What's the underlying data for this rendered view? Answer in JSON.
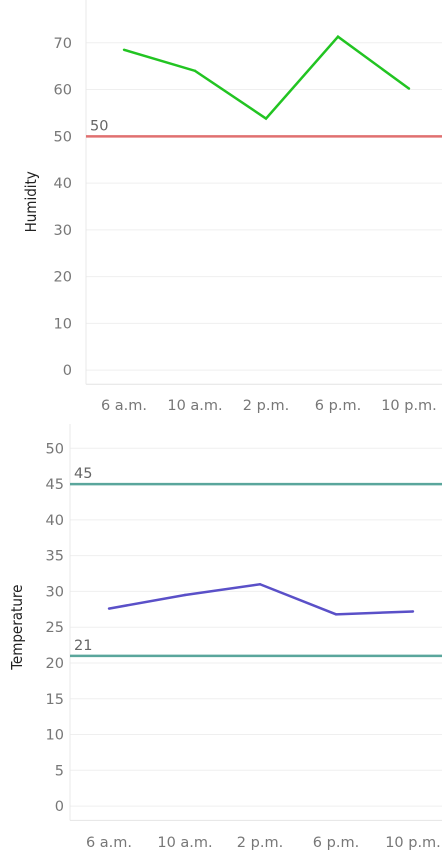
{
  "chart_data": [
    {
      "type": "line",
      "categories": [
        "6 a.m.",
        "10 a.m.",
        "2 p.m.",
        "6 p.m.",
        "10 p.m."
      ],
      "series": [
        {
          "values": [
            68.5,
            64,
            53.8,
            71.3,
            60.2
          ],
          "color": "#22c422"
        }
      ],
      "ylabel": "Humidity",
      "ylim": [
        -3,
        75
      ],
      "yticks": [
        0,
        10,
        20,
        30,
        40,
        50,
        60,
        70
      ],
      "reference_lines": [
        {
          "value": 50,
          "label": "50",
          "color": "#e07070"
        }
      ],
      "grid": true
    },
    {
      "type": "line",
      "categories": [
        "6 a.m.",
        "10 a.m.",
        "2 p.m.",
        "6 p.m.",
        "10 p.m."
      ],
      "series": [
        {
          "values": [
            27.6,
            29.5,
            31,
            26.8,
            27.2
          ],
          "color": "#5a50c8"
        }
      ],
      "ylabel": "Temperature",
      "ylim": [
        -2,
        52
      ],
      "yticks": [
        0,
        5,
        10,
        15,
        20,
        25,
        30,
        35,
        40,
        45,
        50
      ],
      "reference_lines": [
        {
          "value": 45,
          "label": "45",
          "color": "#5aa69c"
        },
        {
          "value": 21,
          "label": "21",
          "color": "#5aa69c"
        }
      ],
      "grid": true
    }
  ]
}
